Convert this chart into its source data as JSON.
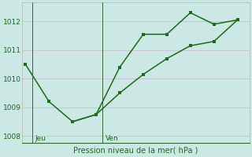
{
  "line1_x": [
    0,
    1,
    2,
    3,
    4,
    5,
    6,
    7,
    8,
    9
  ],
  "line1_y": [
    1010.5,
    1009.2,
    1008.5,
    1008.75,
    1010.4,
    1011.55,
    1011.55,
    1012.3,
    1011.9,
    1012.05
  ],
  "line2_x": [
    2,
    3,
    4,
    5,
    6,
    7,
    8,
    9
  ],
  "line2_y": [
    1008.5,
    1008.75,
    1009.5,
    1010.15,
    1010.7,
    1011.15,
    1011.3,
    1012.05
  ],
  "jeu_line_x": 0.28,
  "ven_line_x": 3.28,
  "ylim": [
    1007.75,
    1012.65
  ],
  "xlim": [
    -0.15,
    9.5
  ],
  "yticks": [
    1008,
    1009,
    1010,
    1011,
    1012
  ],
  "line_color": "#1a6b1a",
  "bg_color": "#cce8e4",
  "grid_color": "#b0d8d4",
  "xlabel": "Pression niveau de la mer( hPa )",
  "jeu_label": "Jeu",
  "ven_label": "Ven"
}
